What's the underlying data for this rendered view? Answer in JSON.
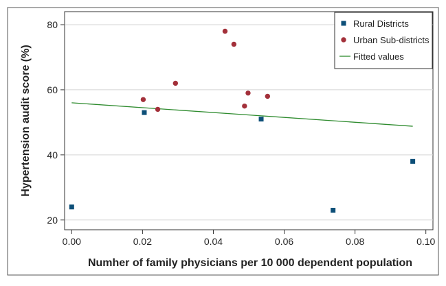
{
  "chart_data": {
    "type": "scatter",
    "title": "",
    "xlabel": "Numher of family physicians per 10 000 dependent population",
    "ylabel": "Hypertension audit score (%)",
    "xlim": [
      -0.002,
      0.102
    ],
    "ylim": [
      17,
      84
    ],
    "x_ticks": [
      0,
      0.02,
      0.04,
      0.06,
      0.08,
      0.1
    ],
    "x_tick_labels": [
      "0.00",
      "0.02",
      "0.04",
      "0.06",
      "0.08",
      "0.10"
    ],
    "y_ticks": [
      20,
      40,
      60,
      80
    ],
    "y_tick_labels": [
      "20",
      "40",
      "60",
      "80"
    ],
    "grid": "horizontal",
    "legend_position": "top-right",
    "series": [
      {
        "name": "Rural Districts",
        "kind": "scatter",
        "marker": "square",
        "color": "#0d4f78",
        "points": [
          {
            "x": 0.0,
            "y": 24
          },
          {
            "x": 0.0205,
            "y": 53
          },
          {
            "x": 0.0535,
            "y": 51
          },
          {
            "x": 0.0738,
            "y": 23
          },
          {
            "x": 0.0963,
            "y": 38
          }
        ]
      },
      {
        "name": "Urban Sub-districts",
        "kind": "scatter",
        "marker": "circle",
        "color": "#a3303a",
        "points": [
          {
            "x": 0.0202,
            "y": 57
          },
          {
            "x": 0.0243,
            "y": 54
          },
          {
            "x": 0.0293,
            "y": 62
          },
          {
            "x": 0.0433,
            "y": 78
          },
          {
            "x": 0.0458,
            "y": 74
          },
          {
            "x": 0.0488,
            "y": 55
          },
          {
            "x": 0.0498,
            "y": 59
          },
          {
            "x": 0.0553,
            "y": 58
          }
        ]
      },
      {
        "name": "Fitted values",
        "kind": "line",
        "color": "#2e8b2e",
        "points": [
          {
            "x": 0.0,
            "y": 56.0
          },
          {
            "x": 0.0963,
            "y": 48.8
          }
        ]
      }
    ]
  }
}
